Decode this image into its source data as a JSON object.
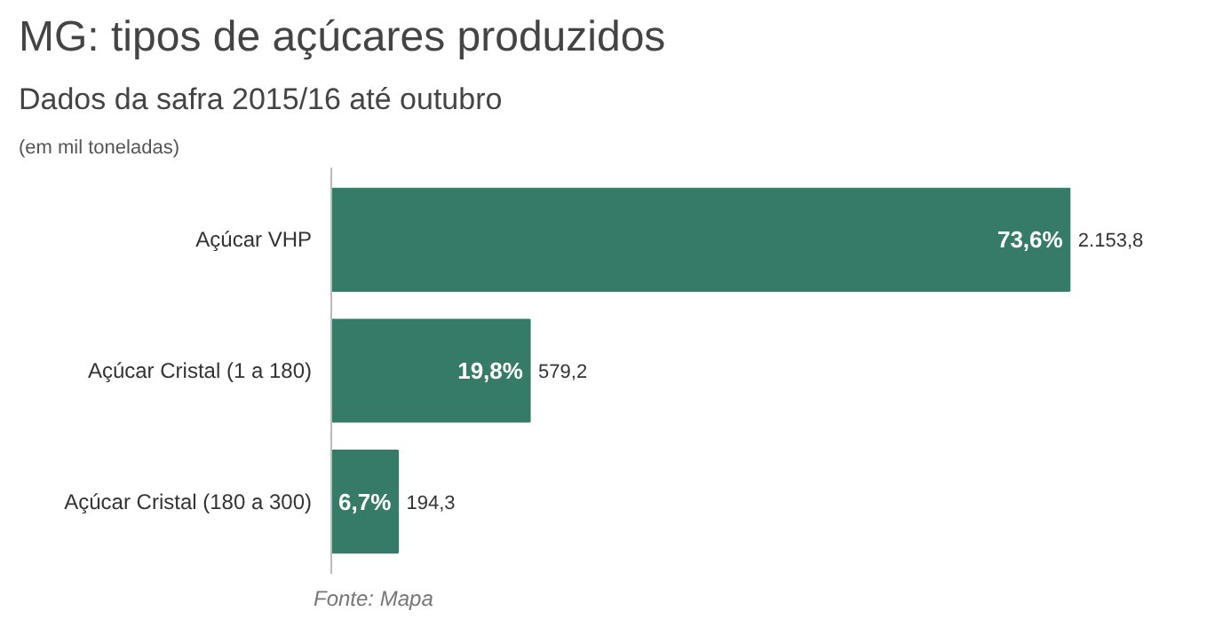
{
  "chart_data": {
    "type": "bar",
    "orientation": "horizontal",
    "title": "MG: tipos de açúcares produzidos",
    "subtitle": "Dados da safra 2015/16 até outubro",
    "categories": [
      "Açúcar VHP",
      "Açúcar Cristal (1 a 180)",
      "Açúcar Cristal (180 a 300)"
    ],
    "values": [
      2153.8,
      579.2,
      194.3
    ],
    "color": "#367a68",
    "value_labels": [
      "2.153,8",
      "579,2",
      "194,3"
    ],
    "tick_labels": "y",
    "grid": false,
    "annotations": [
      "(em mil toneladas)",
      {
        "text": "73,6%",
        "x": 2153.8,
        "y": "Açúcar VHP"
      },
      {
        "text": "19,8%",
        "x": 579.2,
        "y": "Açúcar Cristal (1 a 180)"
      },
      {
        "text": "6,7%",
        "x": 194.3,
        "y": "Açúcar Cristal (180 a 300)"
      },
      "Fonte: Mapa"
    ]
  }
}
